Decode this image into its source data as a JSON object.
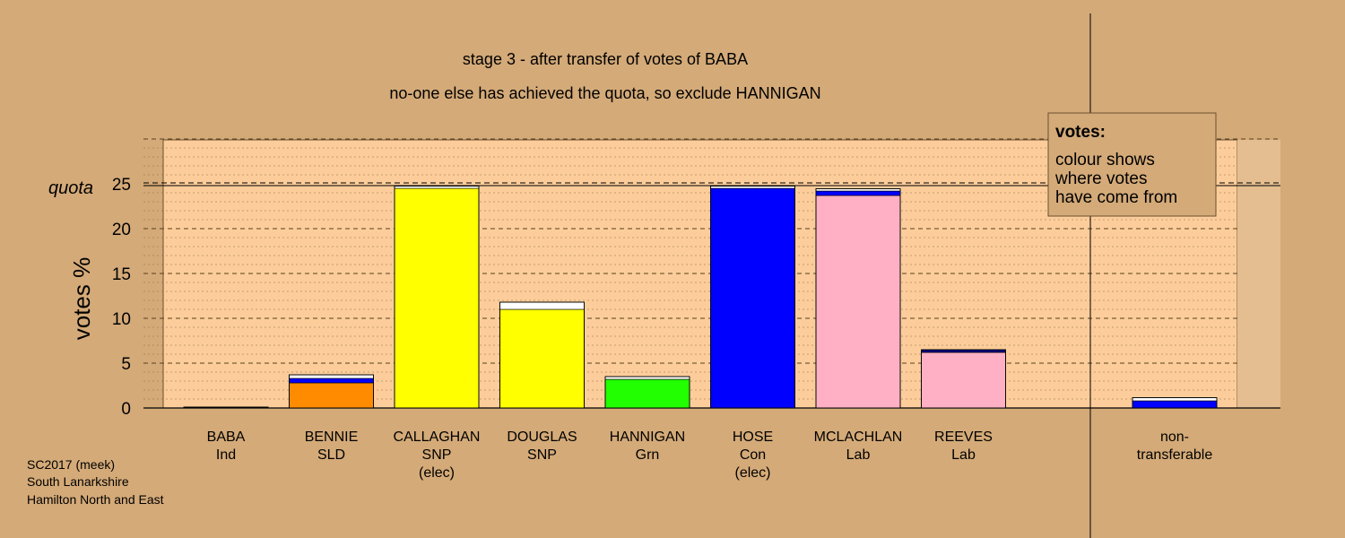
{
  "colors": {
    "background": "#D4AA78",
    "plot_fill": "#FCCD9A",
    "quota_band": "#E4BE90",
    "legend_fill": "#D4AA78",
    "white_segment": "#FFFFFF"
  },
  "chart_data": {
    "type": "bar",
    "stacked": true,
    "title": "stage 3 - after transfer of votes of BABA",
    "subtitle": "no-one else has achieved the quota, so exclude HANNIGAN",
    "ylabel": "votes %",
    "ylim": [
      0,
      30
    ],
    "yticks": [
      "0",
      "5",
      "10",
      "15",
      "20",
      "25"
    ],
    "quota_label": "quota",
    "quota_value": 24.9,
    "grid": true,
    "legend": {
      "placement": "top-right",
      "title": "votes:",
      "lines": [
        "colour shows",
        "where votes",
        "have come from"
      ]
    },
    "candidates": [
      {
        "name": "BABA",
        "party": "Ind",
        "status": "",
        "segments": [
          {
            "value": 0.1,
            "color": "#000000"
          }
        ]
      },
      {
        "name": "BENNIE",
        "party": "SLD",
        "status": "",
        "segments": [
          {
            "value": 2.8,
            "color": "#FF8C00"
          },
          {
            "value": 0.5,
            "color": "#0000FF"
          },
          {
            "value": 0.4,
            "color": "#FFFFFF"
          }
        ]
      },
      {
        "name": "CALLAGHAN",
        "party": "SNP",
        "status": "(elec)",
        "segments": [
          {
            "value": 24.5,
            "color": "#FFFF00"
          },
          {
            "value": 0.25,
            "color": "#FFFFFF"
          }
        ]
      },
      {
        "name": "DOUGLAS",
        "party": "SNP",
        "status": "",
        "segments": [
          {
            "value": 11.0,
            "color": "#FFFF00"
          },
          {
            "value": 0.8,
            "color": "#FFFFFF"
          }
        ]
      },
      {
        "name": "HANNIGAN",
        "party": "Grn",
        "status": "",
        "segments": [
          {
            "value": 3.2,
            "color": "#22FF00"
          },
          {
            "value": 0.3,
            "color": "#FFFFFF"
          }
        ]
      },
      {
        "name": "HOSE",
        "party": "Con",
        "status": "(elec)",
        "segments": [
          {
            "value": 24.5,
            "color": "#0000FF"
          },
          {
            "value": 0.25,
            "color": "#FFFFFF"
          }
        ]
      },
      {
        "name": "MCLACHLAN",
        "party": "Lab",
        "status": "",
        "segments": [
          {
            "value": 23.7,
            "color": "#FFB0C4"
          },
          {
            "value": 0.5,
            "color": "#0000FF"
          },
          {
            "value": 0.25,
            "color": "#FFFFFF"
          }
        ]
      },
      {
        "name": "REEVES",
        "party": "Lab",
        "status": "",
        "segments": [
          {
            "value": 6.2,
            "color": "#FFB0C4"
          },
          {
            "value": 0.3,
            "color": "#000080"
          }
        ]
      }
    ],
    "nontransferable": {
      "label_lines": [
        "non-",
        "transferable"
      ],
      "segments": [
        {
          "value": 0.8,
          "color": "#0000FF"
        },
        {
          "value": 0.35,
          "color": "#FFFFFF"
        }
      ]
    }
  },
  "footer": {
    "lines": [
      "SC2017 (meek)",
      "South Lanarkshire",
      "Hamilton North and East"
    ]
  }
}
